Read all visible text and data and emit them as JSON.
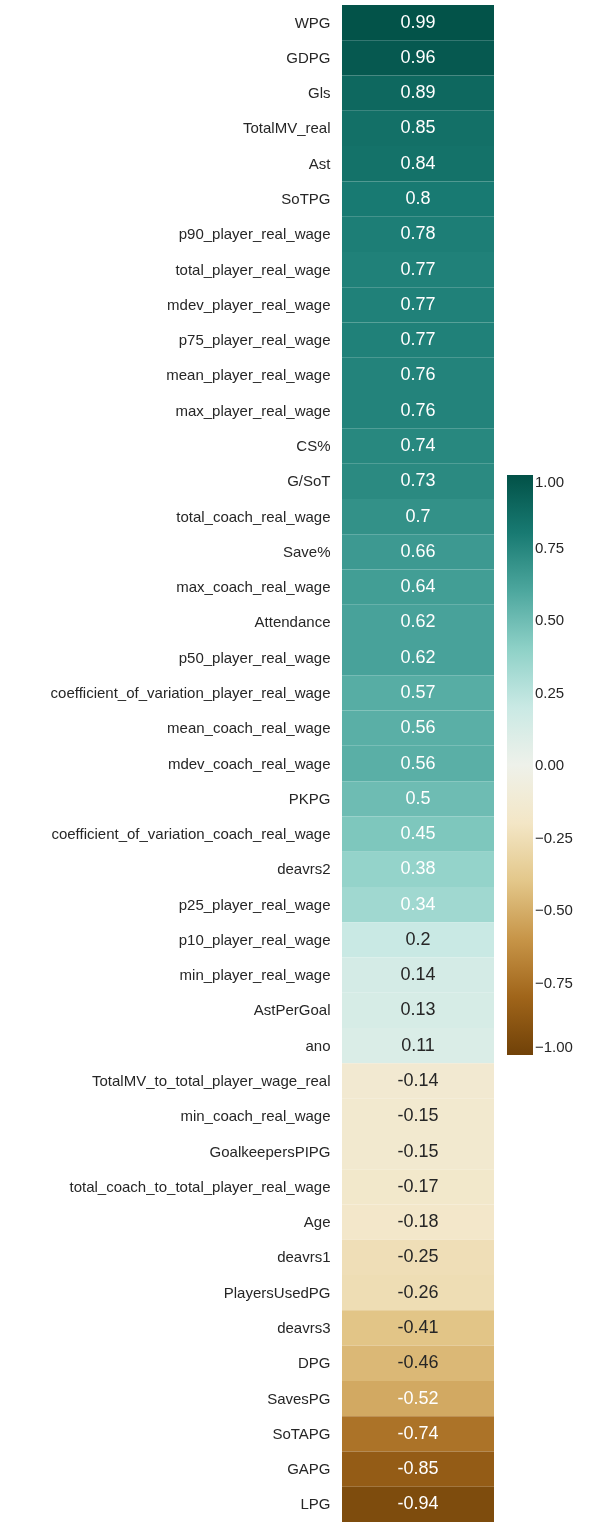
{
  "chart_data": {
    "type": "heatmap",
    "categories": [
      null
    ],
    "y_categories": [
      "WPG",
      "GDPG",
      "Gls",
      "TotalMV_real",
      "Ast",
      "SoTPG",
      "p90_player_real_wage",
      "total_player_real_wage",
      "mdev_player_real_wage",
      "p75_player_real_wage",
      "mean_player_real_wage",
      "max_player_real_wage",
      "CS%",
      "G/SoT",
      "total_coach_real_wage",
      "Save%",
      "max_coach_real_wage",
      "Attendance",
      "p50_player_real_wage",
      "coefficient_of_variation_player_real_wage",
      "mean_coach_real_wage",
      "mdev_coach_real_wage",
      "PKPG",
      "coefficient_of_variation_coach_real_wage",
      "deavrs2",
      "p25_player_real_wage",
      "p10_player_real_wage",
      "min_player_real_wage",
      "AstPerGoal",
      "ano",
      "TotalMV_to_total_player_wage_real",
      "min_coach_real_wage",
      "GoalkeepersPIPG",
      "total_coach_to_total_player_real_wage",
      "Age",
      "deavrs1",
      "PlayersUsedPG",
      "deavrs3",
      "DPG",
      "SavesPG",
      "SoTAPG",
      "GAPG",
      "LPG"
    ],
    "cells": [
      [
        0.99
      ],
      [
        0.96
      ],
      [
        0.89
      ],
      [
        0.85
      ],
      [
        0.84
      ],
      [
        0.8
      ],
      [
        0.78
      ],
      [
        0.77
      ],
      [
        0.77
      ],
      [
        0.77
      ],
      [
        0.76
      ],
      [
        0.76
      ],
      [
        0.74
      ],
      [
        0.73
      ],
      [
        0.7
      ],
      [
        0.66
      ],
      [
        0.64
      ],
      [
        0.62
      ],
      [
        0.62
      ],
      [
        0.57
      ],
      [
        0.56
      ],
      [
        0.56
      ],
      [
        0.5
      ],
      [
        0.45
      ],
      [
        0.38
      ],
      [
        0.34
      ],
      [
        0.2
      ],
      [
        0.14
      ],
      [
        0.13
      ],
      [
        0.11
      ],
      [
        -0.14
      ],
      [
        -0.15
      ],
      [
        -0.15
      ],
      [
        -0.17
      ],
      [
        -0.18
      ],
      [
        -0.25
      ],
      [
        -0.26
      ],
      [
        -0.41
      ],
      [
        -0.46
      ],
      [
        -0.52
      ],
      [
        -0.74
      ],
      [
        -0.85
      ],
      [
        -0.94
      ]
    ],
    "data_labels": true,
    "clim": [
      -1,
      1
    ],
    "cticks": [
      {
        "value": 1,
        "label": "1.00"
      },
      {
        "value": 0.75,
        "label": "0.75"
      },
      {
        "value": 0.5,
        "label": "0.50"
      },
      {
        "value": 0.25,
        "label": "0.25"
      },
      {
        "value": 0,
        "label": "0.00"
      },
      {
        "value": -0.25,
        "label": "−0.25"
      },
      {
        "value": -0.5,
        "label": "−0.50"
      },
      {
        "value": -0.75,
        "label": "−0.75"
      },
      {
        "value": -1,
        "label": "−1.00"
      }
    ]
  }
}
